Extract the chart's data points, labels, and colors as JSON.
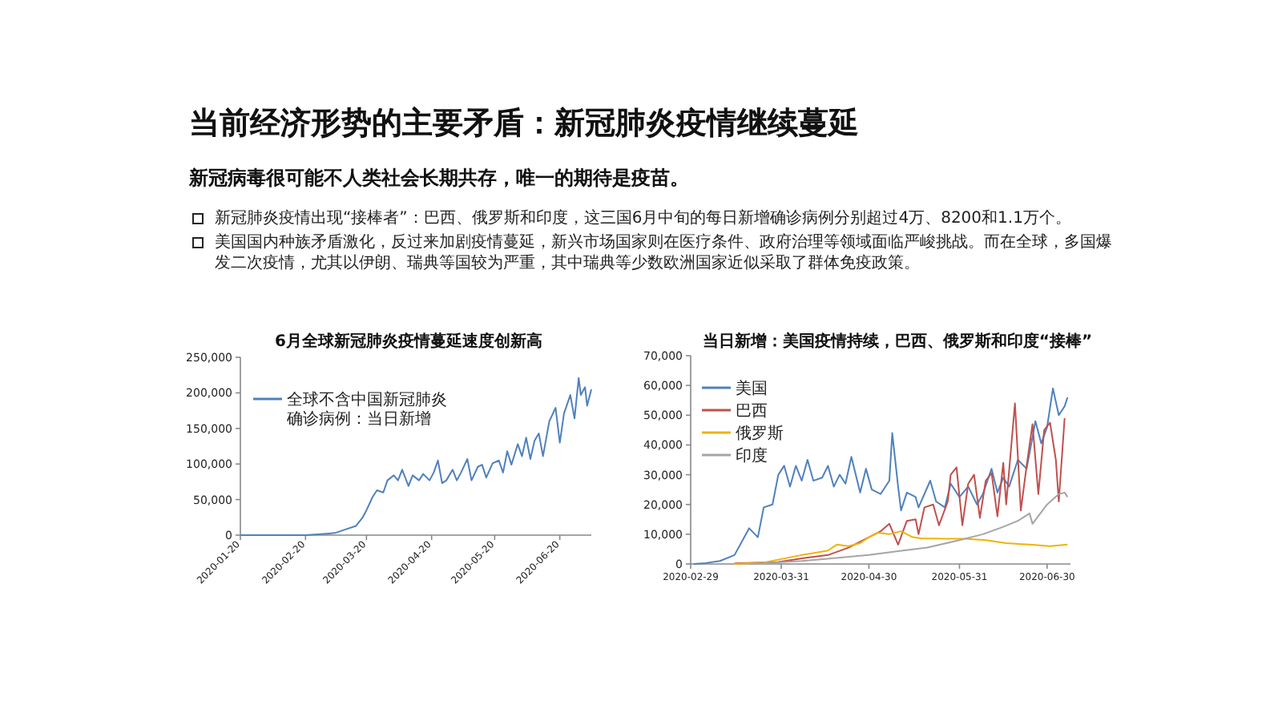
{
  "chart_data": [
    {
      "type": "other",
      "title": "当前经济形势的主要矛盾：新冠肺炎疫情继续蔓延",
      "subtitle": "新冠病毒很可能不人类社会长期共存，唯一的期待是疫苗。",
      "annotations": [
        "新冠肺炎疫情出现“接棒者”：巴西、俄罗斯和印度，这三国6月中旬的每日新增确诊病例分别超过4万、8200和1.1万个。",
        "美国国内种族矛盾激化，反过来加剧疫情蔓延，新兴市场国家则在医疗条件、政府治理等领域面临严峻挑战。而在全球，多国爆发二次疫情，尤其以伊朗、瑞典等国较为严重，其中瑞典等少数欧洲国家近似采取了群体免疫政策。"
      ]
    },
    {
      "type": "line",
      "title": "6月全球新冠肺炎疫情蔓延速度创新高",
      "legend": "top left",
      "xlim": [
        "2020-01-20",
        "2020-07-05"
      ],
      "ylim": [
        0,
        250000
      ],
      "xticks": [
        {
          "value": "2020-01-20",
          "label": "2020-01-20"
        },
        {
          "value": "2020-02-20",
          "label": "2020-02-20"
        },
        {
          "value": "2020-03-20",
          "label": "2020-03-20"
        },
        {
          "value": "2020-04-20",
          "label": "2020-04-20"
        },
        {
          "value": "2020-05-20",
          "label": "2020-05-20"
        },
        {
          "value": "2020-06-20",
          "label": "2020-06-20"
        }
      ],
      "yticks": [
        0,
        {
          "value": 50000,
          "label": "50,000"
        },
        {
          "value": 100000,
          "label": "100,000"
        },
        {
          "value": 150000,
          "label": "150,000"
        },
        {
          "value": 200000,
          "label": "200,000"
        },
        {
          "value": 250000,
          "label": "250,000"
        }
      ],
      "x": [
        "2020-01-20",
        "2020-02-20",
        "2020-03-01",
        "2020-03-05",
        "2020-03-10",
        "2020-03-15",
        "2020-03-18",
        "2020-03-20",
        "2020-03-23",
        "2020-03-25",
        "2020-03-28",
        "2020-03-30",
        "2020-04-02",
        "2020-04-04",
        "2020-04-06",
        "2020-04-09",
        "2020-04-11",
        "2020-04-14",
        "2020-04-16",
        "2020-04-19",
        "2020-04-21",
        "2020-04-23",
        "2020-04-25",
        "2020-04-27",
        "2020-04-30",
        "2020-05-02",
        "2020-05-04",
        "2020-05-07",
        "2020-05-09",
        "2020-05-12",
        "2020-05-14",
        "2020-05-16",
        "2020-05-19",
        "2020-05-22",
        "2020-05-24",
        "2020-05-26",
        "2020-05-28",
        "2020-05-31",
        "2020-06-02",
        "2020-06-04",
        "2020-06-06",
        "2020-06-08",
        "2020-06-10",
        "2020-06-12",
        "2020-06-15",
        "2020-06-18",
        "2020-06-20",
        "2020-06-22",
        "2020-06-25",
        "2020-06-27",
        "2020-06-29",
        "2020-06-30",
        "2020-07-02",
        "2020-07-03",
        "2020-07-05"
      ],
      "series": [
        {
          "name": "全球不含中国新冠肺炎确诊病例：当日新增",
          "color": "#4f81bd",
          "values": [
            0,
            0,
            2000,
            3000,
            8000,
            13000,
            24000,
            35000,
            54000,
            63000,
            60000,
            77000,
            84000,
            77000,
            92000,
            69000,
            84000,
            77000,
            86000,
            77000,
            88000,
            105000,
            73000,
            77000,
            92000,
            77000,
            88000,
            107000,
            77000,
            96000,
            99000,
            81000,
            101000,
            105000,
            88000,
            118000,
            99000,
            128000,
            111000,
            137000,
            107000,
            133000,
            143000,
            111000,
            160000,
            179000,
            130000,
            171000,
            197000,
            164000,
            221000,
            197000,
            208000,
            182000,
            205000
          ]
        }
      ]
    },
    {
      "type": "line",
      "title": "当日新增：美国疫情持续，巴西、俄罗斯和印度“接棒”",
      "legend": "top left",
      "xlim": [
        "2020-02-29",
        "2020-07-08"
      ],
      "ylim": [
        0,
        70000
      ],
      "xticks": [
        {
          "value": "2020-02-29",
          "label": "2020-02-29"
        },
        {
          "value": "2020-03-31",
          "label": "2020-03-31"
        },
        {
          "value": "2020-04-30",
          "label": "2020-04-30"
        },
        {
          "value": "2020-05-31",
          "label": "2020-05-31"
        },
        {
          "value": "2020-06-30",
          "label": "2020-06-30"
        }
      ],
      "yticks": [
        0,
        {
          "value": 10000,
          "label": "10,000"
        },
        {
          "value": 20000,
          "label": "20,000"
        },
        {
          "value": 30000,
          "label": "30,000"
        },
        {
          "value": 40000,
          "label": "40,000"
        },
        {
          "value": 50000,
          "label": "50,000"
        },
        {
          "value": 60000,
          "label": "60,000"
        },
        {
          "value": 70000,
          "label": "70,000"
        }
      ],
      "series": [
        {
          "name": "美国",
          "color": "#4f81bd",
          "x": [
            "2020-03-01",
            "2020-03-05",
            "2020-03-10",
            "2020-03-15",
            "2020-03-20",
            "2020-03-23",
            "2020-03-25",
            "2020-03-28",
            "2020-03-30",
            "2020-04-01",
            "2020-04-03",
            "2020-04-05",
            "2020-04-07",
            "2020-04-09",
            "2020-04-11",
            "2020-04-14",
            "2020-04-16",
            "2020-04-18",
            "2020-04-20",
            "2020-04-22",
            "2020-04-24",
            "2020-04-27",
            "2020-04-29",
            "2020-05-01",
            "2020-05-04",
            "2020-05-07",
            "2020-05-08",
            "2020-05-10",
            "2020-05-11",
            "2020-05-13",
            "2020-05-16",
            "2020-05-17",
            "2020-05-21",
            "2020-05-23",
            "2020-05-26",
            "2020-05-28",
            "2020-05-31",
            "2020-06-03",
            "2020-06-06",
            "2020-06-08",
            "2020-06-11",
            "2020-06-13",
            "2020-06-15",
            "2020-06-17",
            "2020-06-20",
            "2020-06-23",
            "2020-06-26",
            "2020-06-28",
            "2020-06-30",
            "2020-07-02",
            "2020-07-04",
            "2020-07-06",
            "2020-07-07"
          ],
          "values": [
            0,
            300,
            1000,
            3000,
            12000,
            9000,
            19000,
            20000,
            30000,
            33000,
            26000,
            33000,
            28000,
            35000,
            28000,
            29000,
            33000,
            26000,
            30000,
            27000,
            36000,
            24000,
            32000,
            25000,
            23500,
            28000,
            44000,
            26000,
            18000,
            24000,
            22500,
            19000,
            28000,
            21000,
            19000,
            27000,
            22500,
            26000,
            20000,
            23500,
            32000,
            24000,
            29000,
            26000,
            35000,
            32000,
            48000,
            40500,
            46000,
            59000,
            50000,
            53000,
            56000
          ]
        },
        {
          "name": "巴西",
          "color": "#c0504d",
          "x": [
            "2020-03-15",
            "2020-03-30",
            "2020-04-08",
            "2020-04-16",
            "2020-04-23",
            "2020-04-28",
            "2020-05-04",
            "2020-05-07",
            "2020-05-10",
            "2020-05-13",
            "2020-05-16",
            "2020-05-17",
            "2020-05-19",
            "2020-05-22",
            "2020-05-24",
            "2020-05-27",
            "2020-05-28",
            "2020-05-30",
            "2020-06-01",
            "2020-06-03",
            "2020-06-05",
            "2020-06-07",
            "2020-06-09",
            "2020-06-11",
            "2020-06-13",
            "2020-06-15",
            "2020-06-16",
            "2020-06-19",
            "2020-06-21",
            "2020-06-23",
            "2020-06-25",
            "2020-06-27",
            "2020-06-29",
            "2020-07-01",
            "2020-07-03",
            "2020-07-04",
            "2020-07-06"
          ],
          "values": [
            200,
            700,
            2000,
            3000,
            5500,
            8000,
            11000,
            13500,
            6500,
            14500,
            15000,
            10000,
            19000,
            20000,
            13000,
            21000,
            30000,
            32500,
            13000,
            27000,
            30000,
            15500,
            28000,
            30500,
            16000,
            34000,
            20000,
            54000,
            18000,
            33000,
            47000,
            23500,
            45000,
            47500,
            35000,
            21000,
            49000
          ]
        },
        {
          "name": "俄罗斯",
          "color": "#f2b200",
          "x": [
            "2020-03-15",
            "2020-03-25",
            "2020-04-07",
            "2020-04-16",
            "2020-04-19",
            "2020-04-23",
            "2020-04-27",
            "2020-04-30",
            "2020-05-03",
            "2020-05-07",
            "2020-05-11",
            "2020-05-15",
            "2020-05-18",
            "2020-05-26",
            "2020-06-02",
            "2020-06-09",
            "2020-06-16",
            "2020-06-24",
            "2020-07-01",
            "2020-07-07"
          ],
          "values": [
            0,
            500,
            3000,
            4500,
            6500,
            6000,
            7000,
            9000,
            10500,
            10000,
            11000,
            9000,
            8600,
            8500,
            8500,
            8000,
            7000,
            6500,
            6000,
            6500
          ]
        },
        {
          "name": "印度",
          "color": "#a5a5a5",
          "x": [
            "2020-03-20",
            "2020-04-07",
            "2020-04-30",
            "2020-05-10",
            "2020-05-20",
            "2020-05-31",
            "2020-06-08",
            "2020-06-15",
            "2020-06-20",
            "2020-06-24",
            "2020-06-25",
            "2020-06-30",
            "2020-07-04",
            "2020-07-06",
            "2020-07-07"
          ],
          "values": [
            0,
            1000,
            3000,
            4300,
            5500,
            8000,
            10000,
            12500,
            14500,
            17000,
            13500,
            20000,
            23500,
            24000,
            22500
          ]
        }
      ]
    }
  ]
}
